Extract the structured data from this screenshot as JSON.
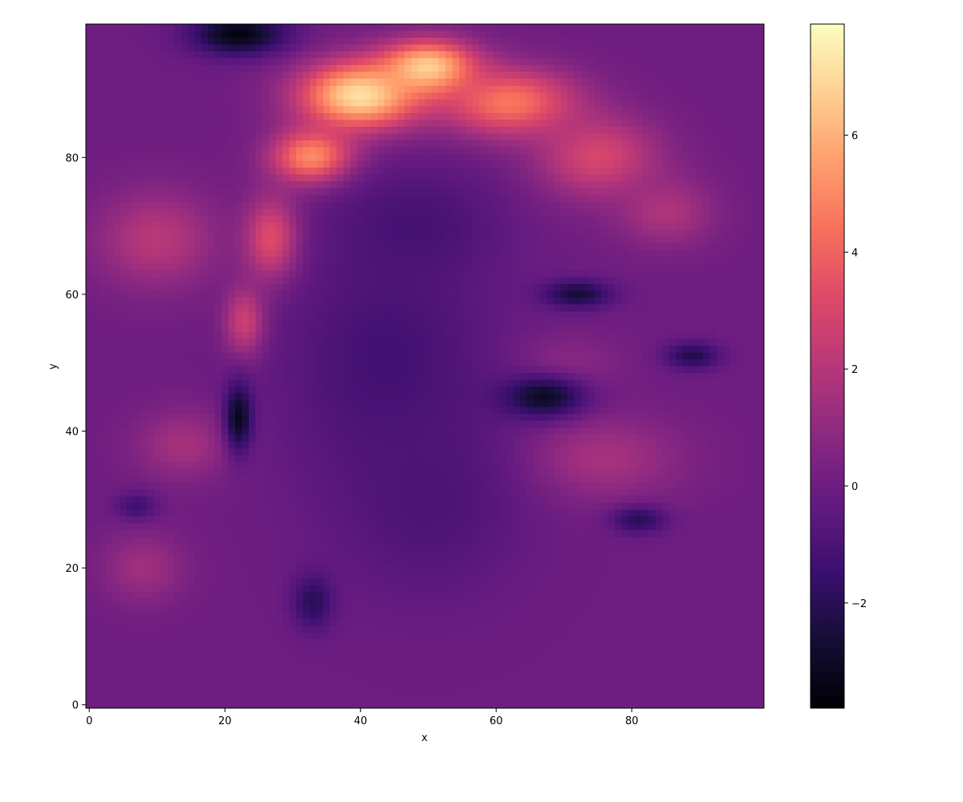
{
  "chart_data": {
    "type": "heatmap",
    "title": "",
    "xlabel": "x",
    "ylabel": "y",
    "grid_size": 100,
    "xlim": [
      -0.5,
      99.5
    ],
    "ylim": [
      -0.5,
      99.5
    ],
    "x_ticks": [
      0,
      20,
      40,
      60,
      80
    ],
    "y_ticks": [
      0,
      20,
      40,
      60,
      80
    ],
    "colormap": "magma",
    "colorbar": {
      "vmin": -3.8,
      "vmax": 7.9,
      "ticks": [
        -2,
        0,
        2,
        4,
        6
      ],
      "tick_labels": [
        "−2",
        "0",
        "2",
        "4",
        "6"
      ]
    },
    "background_value": 0.0,
    "features": [
      {
        "kind": "blob",
        "cx": 40,
        "cy": 89,
        "rx": 9,
        "ry": 5,
        "value": 7.3
      },
      {
        "kind": "blob",
        "cx": 50,
        "cy": 93,
        "rx": 7,
        "ry": 4,
        "value": 7.0
      },
      {
        "kind": "blob",
        "cx": 33,
        "cy": 80,
        "rx": 6,
        "ry": 4,
        "value": 5.6
      },
      {
        "kind": "blob",
        "cx": 27,
        "cy": 68,
        "rx": 4,
        "ry": 6,
        "value": 4.0
      },
      {
        "kind": "blob",
        "cx": 23,
        "cy": 56,
        "rx": 3,
        "ry": 5,
        "value": 3.2
      },
      {
        "kind": "blob",
        "cx": 62,
        "cy": 88,
        "rx": 10,
        "ry": 5,
        "value": 4.6
      },
      {
        "kind": "blob",
        "cx": 75,
        "cy": 80,
        "rx": 9,
        "ry": 6,
        "value": 3.0
      },
      {
        "kind": "blob",
        "cx": 85,
        "cy": 72,
        "rx": 7,
        "ry": 5,
        "value": 1.8
      },
      {
        "kind": "blob",
        "cx": 10,
        "cy": 68,
        "rx": 9,
        "ry": 7,
        "value": 2.1
      },
      {
        "kind": "blob",
        "cx": 14,
        "cy": 38,
        "rx": 7,
        "ry": 5,
        "value": 1.6
      },
      {
        "kind": "blob",
        "cx": 8,
        "cy": 20,
        "rx": 6,
        "ry": 5,
        "value": 1.4
      },
      {
        "kind": "blob",
        "cx": 75,
        "cy": 36,
        "rx": 12,
        "ry": 6,
        "value": 1.7
      },
      {
        "kind": "blob",
        "cx": 70,
        "cy": 50,
        "rx": 8,
        "ry": 4,
        "value": 0.9
      },
      {
        "kind": "blob",
        "cx": 44,
        "cy": 50,
        "rx": 15,
        "ry": 18,
        "value": -1.3
      },
      {
        "kind": "blob",
        "cx": 50,
        "cy": 30,
        "rx": 14,
        "ry": 14,
        "value": -1.0
      },
      {
        "kind": "blob",
        "cx": 48,
        "cy": 70,
        "rx": 12,
        "ry": 8,
        "value": -1.2
      },
      {
        "kind": "blob",
        "cx": 67,
        "cy": 45,
        "rx": 6,
        "ry": 3,
        "value": -3.0
      },
      {
        "kind": "blob",
        "cx": 72,
        "cy": 60,
        "rx": 5,
        "ry": 2,
        "value": -2.6
      },
      {
        "kind": "blob",
        "cx": 89,
        "cy": 51,
        "rx": 4,
        "ry": 2,
        "value": -2.2
      },
      {
        "kind": "blob",
        "cx": 81,
        "cy": 27,
        "rx": 4,
        "ry": 2,
        "value": -2.0
      },
      {
        "kind": "blob",
        "cx": 7,
        "cy": 29,
        "rx": 3,
        "ry": 2,
        "value": -1.4
      },
      {
        "kind": "blob",
        "cx": 22,
        "cy": 98,
        "rx": 7,
        "ry": 3,
        "value": -3.5
      },
      {
        "kind": "blob",
        "cx": 22,
        "cy": 42,
        "rx": 2,
        "ry": 5,
        "value": -3.2
      },
      {
        "kind": "blob",
        "cx": 33,
        "cy": 15,
        "rx": 3,
        "ry": 4,
        "value": -2.0
      }
    ]
  }
}
